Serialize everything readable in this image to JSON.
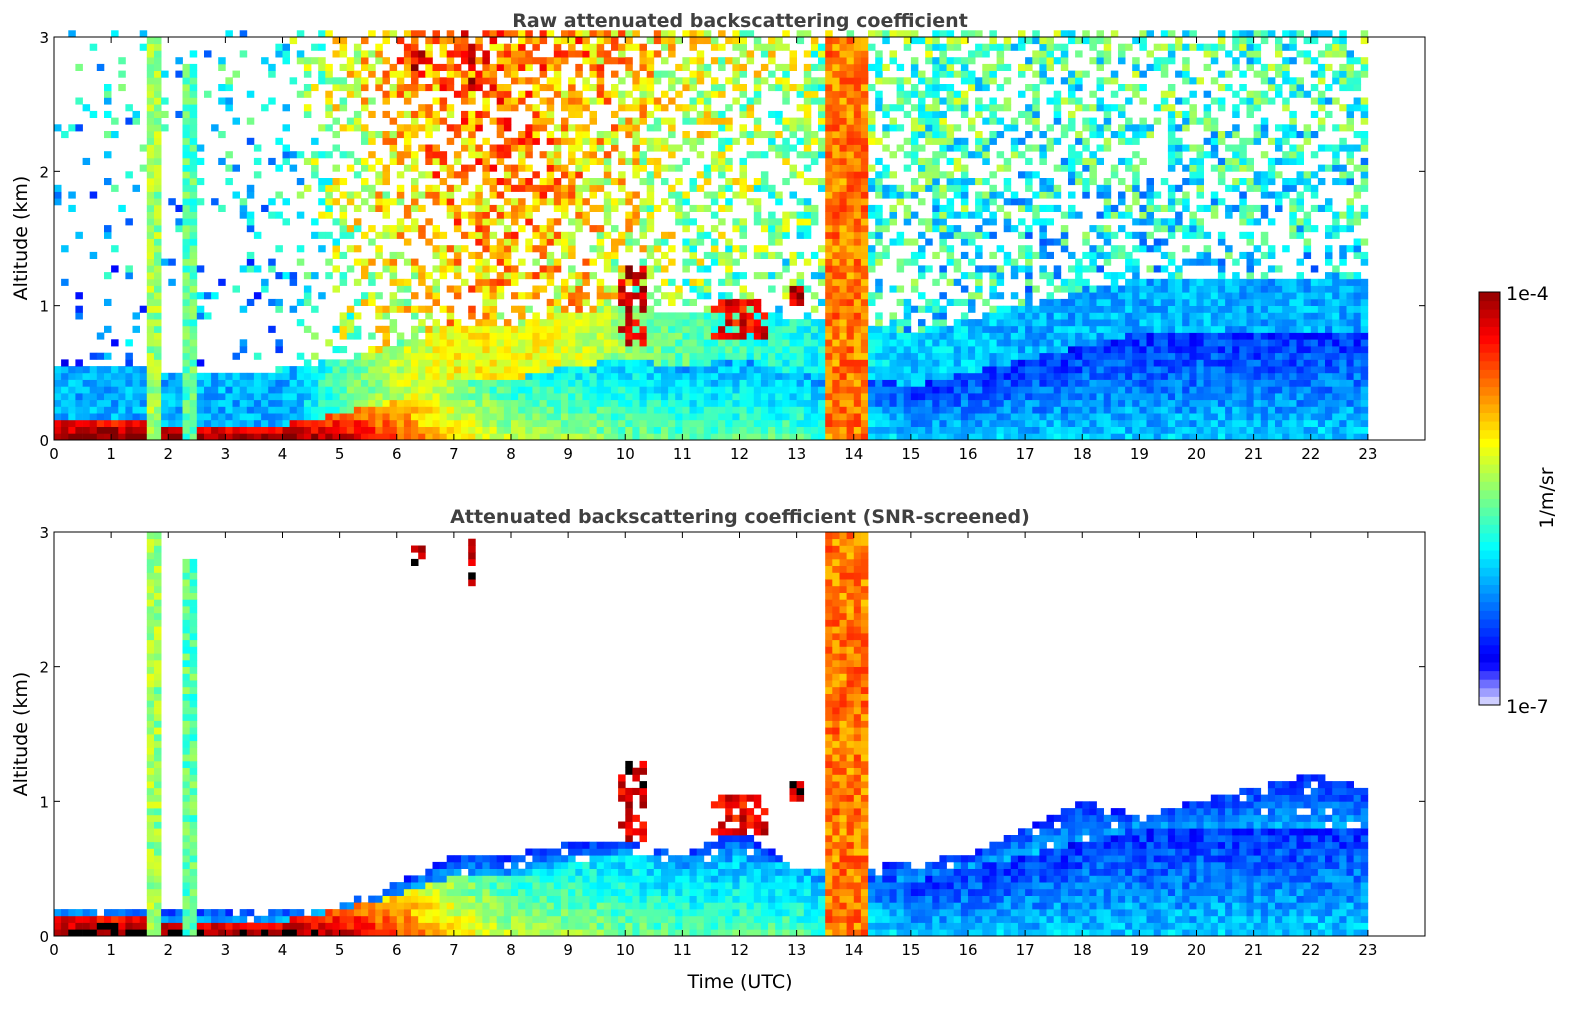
{
  "chart_data": {
    "type": "heatmap",
    "colorbar": {
      "label": "1/m/sr",
      "min_label": "1e-7",
      "max_label": "1e-4",
      "log10_range": [
        -7,
        -4
      ]
    },
    "x": {
      "label": "Time (UTC)",
      "range": [
        0,
        24
      ],
      "ticks": [
        "0",
        "1",
        "2",
        "3",
        "4",
        "5",
        "6",
        "7",
        "8",
        "9",
        "10",
        "11",
        "12",
        "13",
        "14",
        "15",
        "16",
        "17",
        "18",
        "19",
        "20",
        "21",
        "22",
        "23"
      ],
      "data_end": 23
    },
    "y": {
      "label": "Altitude (km)",
      "range": [
        0,
        3
      ],
      "ticks": [
        "0",
        "1",
        "2",
        "3"
      ]
    },
    "hours": [
      0,
      1,
      2,
      3,
      4,
      5,
      6,
      7,
      8,
      9,
      10,
      11,
      12,
      13,
      14,
      15,
      16,
      17,
      18,
      19,
      20,
      21,
      22,
      23
    ],
    "aerosol_top_km": [
      0.15,
      0.15,
      0.12,
      0.1,
      0.12,
      0.2,
      0.3,
      0.45,
      0.45,
      0.55,
      0.6,
      0.55,
      0.6,
      0.5,
      0.5,
      0.4,
      0.5,
      0.6,
      0.7,
      0.8,
      0.8,
      0.8,
      0.8,
      0.8
    ],
    "aerosol_log10": [
      -3.9,
      -3.9,
      -3.9,
      -3.9,
      -3.9,
      -4.1,
      -4.5,
      -5.0,
      -5.3,
      -5.4,
      -5.5,
      -5.6,
      -5.6,
      -5.6,
      -5.8,
      -6.0,
      -6.0,
      -6.0,
      -6.0,
      -6.0,
      -6.0,
      -6.0,
      -6.0,
      -6.0
    ],
    "raw_noise_log10": [
      -6.3,
      -6.3,
      -6.3,
      -6.3,
      -6.2,
      -5.6,
      -5.3,
      -5.1,
      -5.1,
      -5.2,
      -5.4,
      -5.6,
      -5.7,
      -5.8,
      -5.9,
      -6.0,
      -6.0,
      -6.1,
      -6.1,
      -6.1,
      -6.1,
      -6.1,
      -6.1,
      -6.1
    ],
    "raw_noise_density": [
      0.15,
      0.15,
      0.15,
      0.15,
      0.2,
      0.5,
      0.6,
      0.7,
      0.7,
      0.7,
      0.65,
      0.6,
      0.6,
      0.6,
      0.6,
      0.6,
      0.6,
      0.6,
      0.55,
      0.55,
      0.55,
      0.55,
      0.55,
      0.55
    ],
    "screened_top_km": [
      0.22,
      0.2,
      0.2,
      0.2,
      0.2,
      0.22,
      0.4,
      0.6,
      0.6,
      0.7,
      0.7,
      0.6,
      0.8,
      0.5,
      0.5,
      0.55,
      0.6,
      0.8,
      1.0,
      0.9,
      1.0,
      1.1,
      1.2,
      1.1
    ],
    "features": [
      {
        "name": "precipitation",
        "t": [
          1.65,
          1.85
        ],
        "z": [
          0,
          3.0
        ],
        "log10": -5.4
      },
      {
        "name": "precipitation",
        "t": [
          2.25,
          2.5
        ],
        "z": [
          0,
          2.8
        ],
        "log10": -5.6
      },
      {
        "name": "precipitation",
        "t": [
          13.55,
          14.3
        ],
        "z": [
          0,
          3.0
        ],
        "log10": -4.7
      },
      {
        "name": "cloud",
        "t": [
          6.25,
          6.45
        ],
        "z": [
          2.75,
          2.9
        ],
        "log10": -4.1
      },
      {
        "name": "cloud",
        "t": [
          7.2,
          7.35
        ],
        "z": [
          2.6,
          3.0
        ],
        "log10": -4.1
      },
      {
        "name": "cloud",
        "t": [
          9.9,
          10.4
        ],
        "z": [
          0.7,
          1.3
        ],
        "log10": -4.2
      },
      {
        "name": "cloud",
        "t": [
          11.5,
          12.5
        ],
        "z": [
          0.75,
          1.05
        ],
        "log10": -4.3
      },
      {
        "name": "cloud",
        "t": [
          12.9,
          13.1
        ],
        "z": [
          0.9,
          1.15
        ],
        "log10": -4.2
      }
    ],
    "panels": [
      {
        "id": "raw",
        "title": "Raw attenuated backscattering coefficient",
        "screened": false
      },
      {
        "id": "snr",
        "title": "Attenuated backscattering coefficient (SNR-screened)",
        "screened": true
      }
    ]
  }
}
